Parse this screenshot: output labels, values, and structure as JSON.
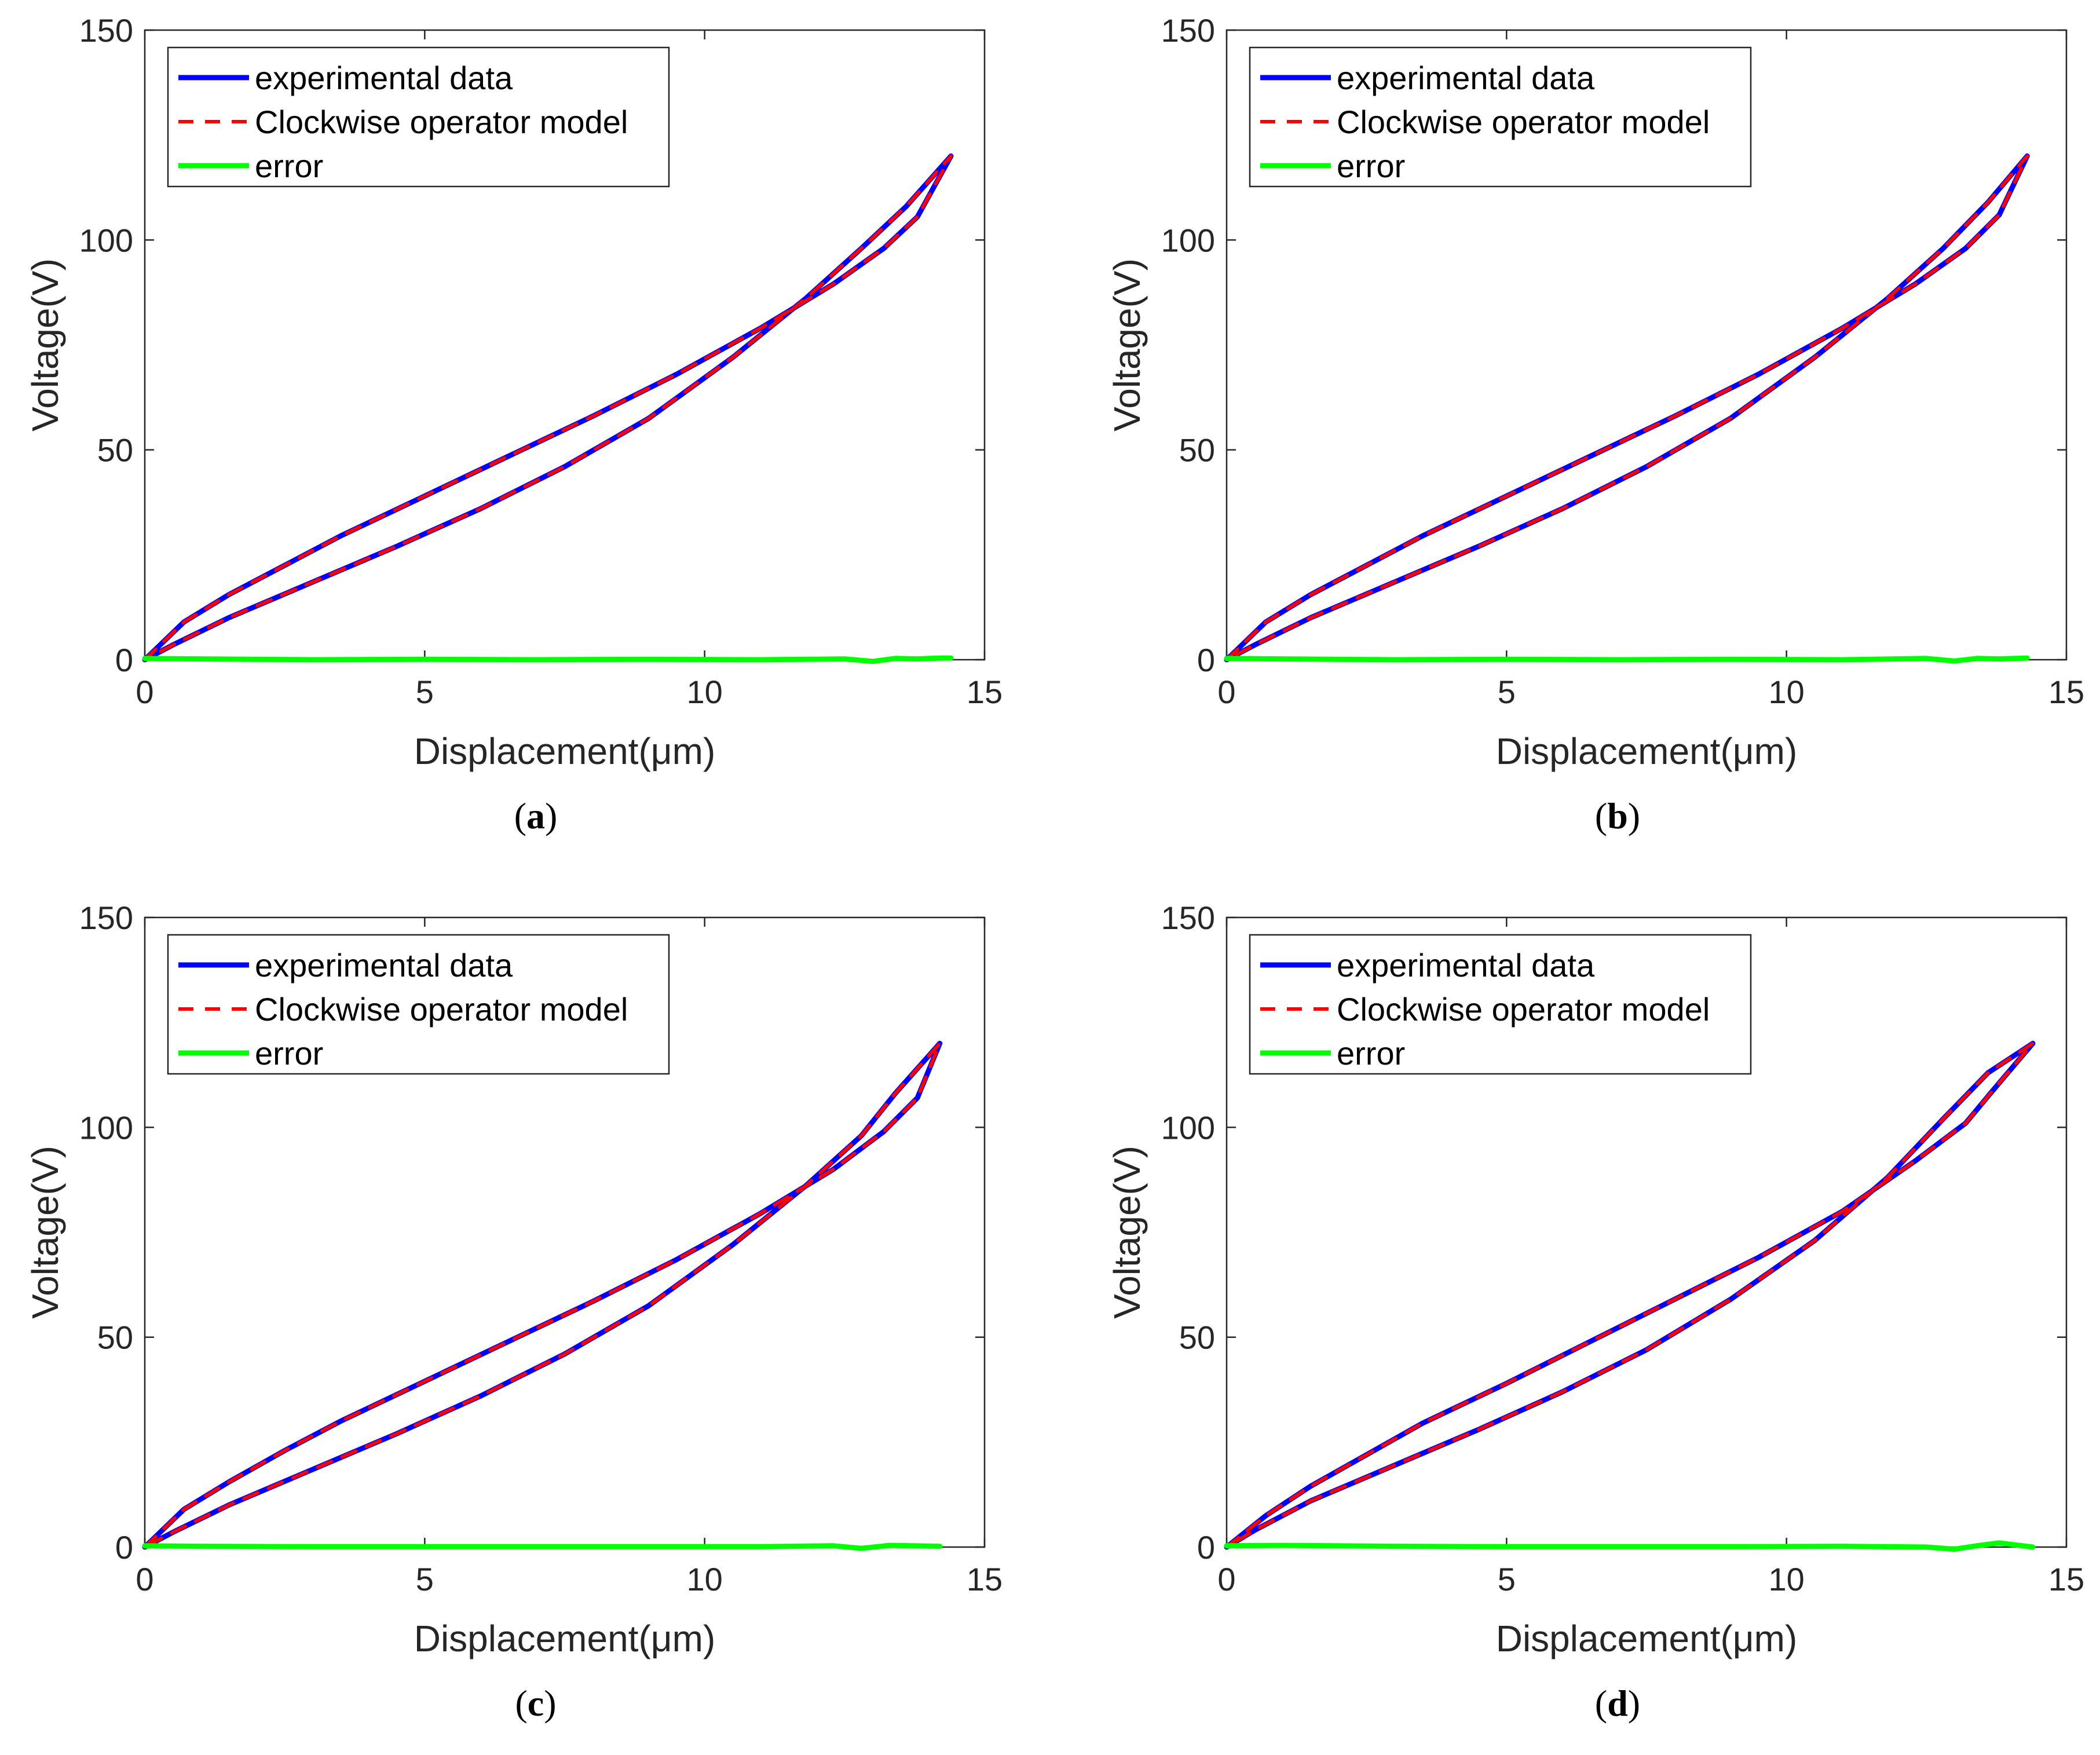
{
  "colors": {
    "experimental": "#0000ff",
    "model": "#ff0000",
    "error": "#00ff00",
    "axis": "#262626"
  },
  "chart_data": [
    {
      "panel": "(a)",
      "panel_letter": "a",
      "type": "line",
      "xlabel": "Displacement(μm)",
      "ylabel": "Voltage(V)",
      "xlim": [
        0,
        15
      ],
      "ylim": [
        0,
        150
      ],
      "xticks": [
        "0",
        "5",
        "10",
        "15"
      ],
      "yticks": [
        "0",
        "50",
        "100",
        "150"
      ],
      "legend": [
        "experimental data",
        "Clockwise operator model",
        "error"
      ],
      "legend_position": "top-left",
      "series": [
        {
          "name": "experimental data",
          "style": "solid",
          "x": [
            0,
            0.7,
            1.5,
            2.5,
            3.5,
            5,
            6.5,
            8,
            9.5,
            11,
            12.3,
            13.2,
            13.8,
            14.4,
            13.6,
            12.8,
            11.8,
            10.5,
            9,
            7.5,
            6,
            4.5,
            3,
            1.5,
            0.5,
            0
          ],
          "y": [
            0,
            9,
            15.5,
            22.5,
            29.5,
            39,
            48.5,
            58,
            68,
            79,
            89.5,
            98,
            105.5,
            120,
            108,
            98,
            86,
            72,
            57.5,
            46,
            36,
            27,
            18.5,
            10,
            3.5,
            0
          ]
        },
        {
          "name": "Clockwise operator model",
          "style": "dashed",
          "x": [
            0,
            0.7,
            1.5,
            2.5,
            3.5,
            5,
            6.5,
            8,
            9.5,
            11,
            12.3,
            13.2,
            13.8,
            14.4,
            13.6,
            12.8,
            11.8,
            10.5,
            9,
            7.5,
            6,
            4.5,
            3,
            1.5,
            0.5,
            0
          ],
          "y": [
            0,
            9,
            15.5,
            22.5,
            29.5,
            39,
            48.5,
            58,
            68,
            79,
            89.5,
            98,
            105.5,
            120,
            108,
            98,
            86,
            72,
            57.5,
            46,
            36,
            27,
            18.5,
            10,
            3.5,
            0
          ]
        },
        {
          "name": "error",
          "style": "solid",
          "x": [
            0,
            1,
            3,
            5,
            7,
            9,
            11,
            12.5,
            13,
            13.4,
            13.8,
            14.2,
            14.4
          ],
          "y": [
            0.3,
            0.2,
            0,
            0.1,
            0,
            0.1,
            0,
            0.2,
            -0.4,
            0.3,
            0.2,
            0.4,
            0.4
          ]
        }
      ]
    },
    {
      "panel": "(b)",
      "panel_letter": "b",
      "type": "line",
      "xlabel": "Displacement(μm)",
      "ylabel": "Voltage(V)",
      "xlim": [
        0,
        15
      ],
      "ylim": [
        0,
        150
      ],
      "xticks": [
        "0",
        "5",
        "10",
        "15"
      ],
      "yticks": [
        "0",
        "50",
        "100",
        "150"
      ],
      "legend": [
        "experimental data",
        "Clockwise operator model",
        "error"
      ],
      "legend_position": "top-left",
      "series": [
        {
          "name": "experimental data",
          "style": "solid",
          "x": [
            0,
            0.7,
            1.5,
            2.5,
            3.5,
            5,
            6.5,
            8,
            9.5,
            11,
            12.3,
            13.2,
            13.8,
            14.3,
            13.6,
            12.8,
            11.8,
            10.5,
            9,
            7.5,
            6,
            4.5,
            3,
            1.5,
            0.5,
            0
          ],
          "y": [
            0,
            9,
            15.5,
            22.5,
            29.5,
            39,
            48.5,
            58,
            68,
            79,
            89.5,
            98,
            106,
            120,
            109,
            98,
            86,
            72,
            57.5,
            46,
            36,
            27,
            18.5,
            10,
            3.5,
            0
          ]
        },
        {
          "name": "Clockwise operator model",
          "style": "dashed",
          "x": [
            0,
            0.7,
            1.5,
            2.5,
            3.5,
            5,
            6.5,
            8,
            9.5,
            11,
            12.3,
            13.2,
            13.8,
            14.3,
            13.6,
            12.8,
            11.8,
            10.5,
            9,
            7.5,
            6,
            4.5,
            3,
            1.5,
            0.5,
            0
          ],
          "y": [
            0,
            9,
            15.5,
            22.5,
            29.5,
            39,
            48.5,
            58,
            68,
            79,
            89.5,
            98,
            106,
            120,
            109,
            98,
            86,
            72,
            57.5,
            46,
            36,
            27,
            18.5,
            10,
            3.5,
            0
          ]
        },
        {
          "name": "error",
          "style": "solid",
          "x": [
            0,
            1,
            3,
            5,
            7,
            9,
            11,
            12.5,
            13,
            13.4,
            13.8,
            14.3
          ],
          "y": [
            0.3,
            0.2,
            0,
            0.1,
            0,
            0.1,
            0,
            0.3,
            -0.3,
            0.3,
            0.2,
            0.4
          ]
        }
      ]
    },
    {
      "panel": "(c)",
      "panel_letter": "c",
      "type": "line",
      "xlabel": "Displacement(μm)",
      "ylabel": "Voltage(V)",
      "xlim": [
        0,
        15
      ],
      "ylim": [
        0,
        150
      ],
      "xticks": [
        "0",
        "5",
        "10",
        "15"
      ],
      "yticks": [
        "0",
        "50",
        "100",
        "150"
      ],
      "legend": [
        "experimental data",
        "Clockwise operator model",
        "error"
      ],
      "legend_position": "top-left",
      "series": [
        {
          "name": "experimental data",
          "style": "solid",
          "x": [
            0,
            0.7,
            1.5,
            2.5,
            3.5,
            5,
            6.5,
            8,
            9.5,
            11,
            12.3,
            13.2,
            13.8,
            14.2,
            13.4,
            12.8,
            11.8,
            10.5,
            9,
            7.5,
            6,
            4.5,
            3,
            1.5,
            0.5,
            0
          ],
          "y": [
            0,
            9,
            15.5,
            23,
            30,
            39.5,
            49,
            58.5,
            68.5,
            79.5,
            90,
            99,
            107,
            120,
            108,
            98,
            86,
            72,
            57.5,
            46,
            36,
            27,
            18.5,
            10,
            3.5,
            0
          ]
        },
        {
          "name": "Clockwise operator model",
          "style": "dashed",
          "x": [
            0,
            0.7,
            1.5,
            2.5,
            3.5,
            5,
            6.5,
            8,
            9.5,
            11,
            12.3,
            13.2,
            13.8,
            14.2,
            13.4,
            12.8,
            11.8,
            10.5,
            9,
            7.5,
            6,
            4.5,
            3,
            1.5,
            0.5,
            0
          ],
          "y": [
            0,
            9,
            15.5,
            23,
            30,
            39.5,
            49,
            58.5,
            68.5,
            79.5,
            90,
            99,
            107,
            120,
            108,
            98,
            86,
            72,
            57.5,
            46,
            36,
            27,
            18.5,
            10,
            3.5,
            0
          ]
        },
        {
          "name": "error",
          "style": "solid",
          "x": [
            0,
            1,
            3,
            5,
            7,
            9,
            11,
            12.3,
            12.8,
            13.3,
            13.7,
            14.2
          ],
          "y": [
            0.3,
            0.2,
            0.1,
            0.1,
            0.1,
            0.1,
            0.1,
            0.3,
            -0.3,
            0.4,
            0.3,
            0.2
          ]
        }
      ]
    },
    {
      "panel": "(d)",
      "panel_letter": "d",
      "type": "line",
      "xlabel": "Displacement(μm)",
      "ylabel": "Voltage(V)",
      "xlim": [
        0,
        15
      ],
      "ylim": [
        0,
        150
      ],
      "xticks": [
        "0",
        "5",
        "10",
        "15"
      ],
      "yticks": [
        "0",
        "50",
        "100",
        "150"
      ],
      "legend": [
        "experimental data",
        "Clockwise operator model",
        "error"
      ],
      "legend_position": "top-left",
      "series": [
        {
          "name": "experimental data",
          "style": "solid",
          "x": [
            0,
            0.7,
            1.5,
            2.5,
            3.5,
            5,
            6.5,
            8,
            9.5,
            11,
            12.3,
            13.2,
            13.7,
            14.4,
            13.6,
            12.8,
            11.8,
            10.5,
            9,
            7.5,
            6,
            4.5,
            3,
            1.5,
            0.5,
            0
          ],
          "y": [
            0,
            7.5,
            14.5,
            22,
            29.5,
            39,
            49,
            59,
            69,
            80,
            92,
            101,
            109,
            120,
            113,
            102,
            88,
            73,
            59,
            47,
            37,
            28,
            19.5,
            11,
            4,
            0
          ]
        },
        {
          "name": "Clockwise operator model",
          "style": "dashed",
          "x": [
            0,
            0.7,
            1.5,
            2.5,
            3.5,
            5,
            6.5,
            8,
            9.5,
            11,
            12.3,
            13.2,
            13.7,
            14.4,
            13.6,
            12.8,
            11.8,
            10.5,
            9,
            7.5,
            6,
            4.5,
            3,
            1.5,
            0.5,
            0
          ],
          "y": [
            0,
            7.5,
            14.5,
            22,
            29.5,
            39,
            49,
            59,
            69,
            80,
            92,
            101,
            109,
            120,
            113,
            102,
            88,
            73,
            59,
            47,
            37,
            28,
            19.5,
            11,
            4,
            0
          ]
        },
        {
          "name": "error",
          "style": "solid",
          "x": [
            0,
            1,
            3,
            5,
            7,
            9,
            11,
            12.5,
            13,
            13.4,
            13.8,
            14.4
          ],
          "y": [
            0.3,
            0.4,
            0.2,
            0.1,
            0.1,
            0.1,
            0.2,
            0,
            -0.5,
            0.3,
            1,
            0
          ]
        }
      ]
    }
  ]
}
